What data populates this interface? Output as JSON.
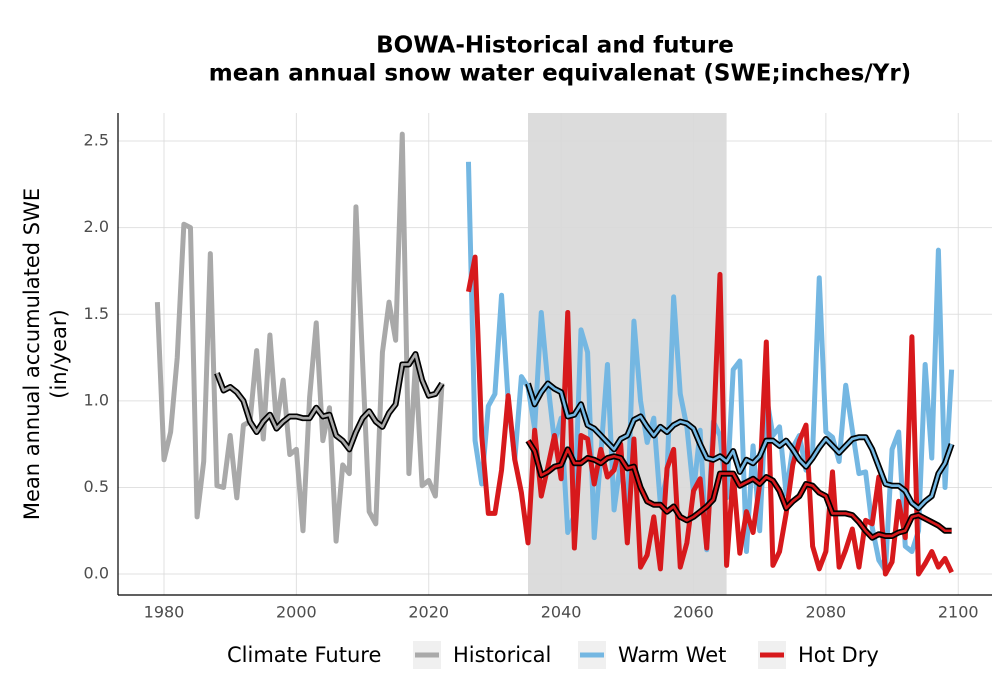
{
  "chart_data": {
    "type": "line",
    "title": [
      "BOWA-Historical and future",
      "mean annual snow water equivalenat (SWE;inches/Yr)"
    ],
    "y_label": [
      "Mean annual accumulated SWE",
      "(in/year)"
    ],
    "legend_title": "Climate Future",
    "shade": [
      2035,
      2065
    ],
    "xlim": [
      1973.05,
      2105.1
    ],
    "xticks": [
      1980,
      2000,
      2020,
      2040,
      2060,
      2080,
      2100
    ],
    "ylim": [
      -0.121,
      2.662
    ],
    "yticks": [
      {
        "value": 0,
        "label": "0.0"
      },
      0.5,
      {
        "value": 1,
        "label": "1.0"
      },
      1.5,
      {
        "value": 2,
        "label": "2.0"
      },
      2.5
    ],
    "grid": true,
    "series": [
      {
        "name": "Historical",
        "color": "#a9a9a9",
        "x": [
          1979,
          1980,
          1981,
          1982,
          1983,
          1984,
          1985,
          1986,
          1987,
          1988,
          1989,
          1990,
          1991,
          1992,
          1993,
          1994,
          1995,
          1996,
          1997,
          1998,
          1999,
          2000,
          2001,
          2002,
          2003,
          2004,
          2005,
          2006,
          2007,
          2008,
          2009,
          2010,
          2011,
          2012,
          2013,
          2014,
          2015,
          2016,
          2017,
          2018,
          2019,
          2020,
          2021,
          2022
        ],
        "values": [
          1.57,
          0.66,
          0.82,
          1.25,
          2.02,
          2.0,
          0.33,
          0.65,
          1.85,
          0.51,
          0.5,
          0.8,
          0.44,
          0.86,
          0.88,
          1.29,
          0.78,
          1.38,
          0.86,
          1.12,
          0.69,
          0.72,
          0.25,
          1.02,
          1.45,
          0.77,
          0.96,
          0.19,
          0.63,
          0.58,
          2.12,
          1.23,
          0.36,
          0.29,
          1.28,
          1.57,
          1.35,
          2.54,
          0.58,
          1.22,
          0.51,
          0.54,
          0.45,
          1.1
        ],
        "smooth_x": [
          1988,
          1989,
          1990,
          1991,
          1992,
          1993,
          1994,
          1995,
          1996,
          1997,
          1998,
          1999,
          2000,
          2001,
          2002,
          2003,
          2004,
          2005,
          2006,
          2007,
          2008,
          2009,
          2010,
          2011,
          2012,
          2013,
          2014,
          2015,
          2016,
          2017,
          2018,
          2019,
          2020,
          2021,
          2022
        ],
        "smooth": [
          1.16,
          1.06,
          1.08,
          1.05,
          1.0,
          0.88,
          0.82,
          0.88,
          0.92,
          0.84,
          0.88,
          0.91,
          0.91,
          0.9,
          0.9,
          0.96,
          0.91,
          0.92,
          0.8,
          0.77,
          0.72,
          0.82,
          0.9,
          0.94,
          0.88,
          0.85,
          0.93,
          0.98,
          1.21,
          1.21,
          1.27,
          1.12,
          1.03,
          1.04,
          1.1
        ]
      },
      {
        "name": "Warm Wet",
        "color": "#74b7e2",
        "x": [
          2026,
          2027,
          2028,
          2029,
          2030,
          2031,
          2032,
          2033,
          2034,
          2035,
          2036,
          2037,
          2038,
          2039,
          2040,
          2041,
          2042,
          2043,
          2044,
          2045,
          2046,
          2047,
          2048,
          2049,
          2050,
          2051,
          2052,
          2053,
          2054,
          2055,
          2056,
          2057,
          2058,
          2059,
          2060,
          2061,
          2062,
          2063,
          2064,
          2065,
          2066,
          2067,
          2068,
          2069,
          2070,
          2071,
          2072,
          2073,
          2074,
          2075,
          2076,
          2077,
          2078,
          2079,
          2080,
          2081,
          2082,
          2083,
          2084,
          2085,
          2086,
          2087,
          2088,
          2089,
          2090,
          2091,
          2092,
          2093,
          2094,
          2095,
          2096,
          2097,
          2098,
          2099
        ],
        "values": [
          2.38,
          0.77,
          0.52,
          0.97,
          1.04,
          1.61,
          1.0,
          0.66,
          1.14,
          1.08,
          0.84,
          1.51,
          1.1,
          0.76,
          0.9,
          0.24,
          0.34,
          1.41,
          1.28,
          0.21,
          0.69,
          1.21,
          0.37,
          0.65,
          0.33,
          1.46,
          1.0,
          0.76,
          0.9,
          0.4,
          0.57,
          1.6,
          1.04,
          0.85,
          0.47,
          0.83,
          0.14,
          0.88,
          0.8,
          0.44,
          1.18,
          1.23,
          0.13,
          0.74,
          0.25,
          1.03,
          0.8,
          0.85,
          0.46,
          0.73,
          0.8,
          0.6,
          0.71,
          1.71,
          0.82,
          0.79,
          0.65,
          1.09,
          0.83,
          0.58,
          0.59,
          0.27,
          0.08,
          0.02,
          0.72,
          0.82,
          0.16,
          0.13,
          0.25,
          1.21,
          0.67,
          1.87,
          0.5,
          1.18
        ],
        "smooth_x": [
          2035,
          2036,
          2037,
          2038,
          2039,
          2040,
          2041,
          2042,
          2043,
          2044,
          2045,
          2046,
          2047,
          2048,
          2049,
          2050,
          2051,
          2052,
          2053,
          2054,
          2055,
          2056,
          2057,
          2058,
          2059,
          2060,
          2061,
          2062,
          2063,
          2064,
          2065,
          2066,
          2067,
          2068,
          2069,
          2070,
          2071,
          2072,
          2073,
          2074,
          2075,
          2076,
          2077,
          2078,
          2079,
          2080,
          2081,
          2082,
          2083,
          2084,
          2085,
          2086,
          2087,
          2088,
          2089,
          2090,
          2091,
          2092,
          2093,
          2094,
          2095,
          2096,
          2097,
          2098,
          2099
        ],
        "smooth": [
          1.1,
          0.98,
          1.05,
          1.1,
          1.07,
          1.05,
          0.91,
          0.92,
          0.98,
          0.86,
          0.84,
          0.8,
          0.76,
          0.72,
          0.78,
          0.8,
          0.89,
          0.91,
          0.85,
          0.8,
          0.85,
          0.82,
          0.86,
          0.88,
          0.87,
          0.84,
          0.75,
          0.67,
          0.66,
          0.68,
          0.65,
          0.71,
          0.59,
          0.66,
          0.64,
          0.68,
          0.77,
          0.77,
          0.74,
          0.77,
          0.72,
          0.66,
          0.62,
          0.67,
          0.73,
          0.78,
          0.74,
          0.7,
          0.74,
          0.78,
          0.79,
          0.79,
          0.72,
          0.62,
          0.52,
          0.51,
          0.51,
          0.48,
          0.41,
          0.38,
          0.42,
          0.45,
          0.58,
          0.64,
          0.75
        ]
      },
      {
        "name": "Hot Dry",
        "color": "#d7191c",
        "x": [
          2026,
          2027,
          2028,
          2029,
          2030,
          2031,
          2032,
          2033,
          2034,
          2035,
          2036,
          2037,
          2038,
          2039,
          2040,
          2041,
          2042,
          2043,
          2044,
          2045,
          2046,
          2047,
          2048,
          2049,
          2050,
          2051,
          2052,
          2053,
          2054,
          2055,
          2056,
          2057,
          2058,
          2059,
          2060,
          2061,
          2062,
          2063,
          2064,
          2065,
          2066,
          2067,
          2068,
          2069,
          2070,
          2071,
          2072,
          2073,
          2074,
          2075,
          2076,
          2077,
          2078,
          2079,
          2080,
          2081,
          2082,
          2083,
          2084,
          2085,
          2086,
          2087,
          2088,
          2089,
          2090,
          2091,
          2092,
          2093,
          2094,
          2095,
          2096,
          2097,
          2098,
          2099
        ],
        "values": [
          1.63,
          1.83,
          0.8,
          0.35,
          0.35,
          0.6,
          1.03,
          0.66,
          0.47,
          0.18,
          0.83,
          0.45,
          0.62,
          0.8,
          0.55,
          1.51,
          0.15,
          0.8,
          0.78,
          0.52,
          0.72,
          0.56,
          0.6,
          0.75,
          0.18,
          0.78,
          0.04,
          0.11,
          0.33,
          0.03,
          0.61,
          0.72,
          0.04,
          0.18,
          0.48,
          0.55,
          0.15,
          0.8,
          1.73,
          0.05,
          0.58,
          0.12,
          0.36,
          0.24,
          0.52,
          1.34,
          0.05,
          0.13,
          0.35,
          0.63,
          0.77,
          0.86,
          0.16,
          0.03,
          0.13,
          0.59,
          0.04,
          0.14,
          0.26,
          0.04,
          0.31,
          0.29,
          0.56,
          0.0,
          0.07,
          0.42,
          0.21,
          1.37,
          0.0,
          0.06,
          0.13,
          0.04,
          0.09,
          0.01
        ],
        "smooth_x": [
          2035,
          2036,
          2037,
          2038,
          2039,
          2040,
          2041,
          2042,
          2043,
          2044,
          2045,
          2046,
          2047,
          2048,
          2049,
          2050,
          2051,
          2052,
          2053,
          2054,
          2055,
          2056,
          2057,
          2058,
          2059,
          2060,
          2061,
          2062,
          2063,
          2064,
          2065,
          2066,
          2067,
          2068,
          2069,
          2070,
          2071,
          2072,
          2073,
          2074,
          2075,
          2076,
          2077,
          2078,
          2079,
          2080,
          2081,
          2082,
          2083,
          2084,
          2085,
          2086,
          2087,
          2088,
          2089,
          2090,
          2091,
          2092,
          2093,
          2094,
          2095,
          2096,
          2097,
          2098,
          2099
        ],
        "smooth": [
          0.77,
          0.71,
          0.57,
          0.59,
          0.62,
          0.63,
          0.72,
          0.64,
          0.64,
          0.67,
          0.66,
          0.64,
          0.67,
          0.68,
          0.67,
          0.61,
          0.62,
          0.5,
          0.42,
          0.4,
          0.4,
          0.36,
          0.39,
          0.33,
          0.31,
          0.33,
          0.36,
          0.39,
          0.43,
          0.58,
          0.58,
          0.58,
          0.51,
          0.53,
          0.55,
          0.52,
          0.56,
          0.54,
          0.48,
          0.38,
          0.42,
          0.45,
          0.52,
          0.51,
          0.47,
          0.45,
          0.35,
          0.35,
          0.35,
          0.34,
          0.3,
          0.25,
          0.21,
          0.23,
          0.22,
          0.22,
          0.24,
          0.25,
          0.33,
          0.34,
          0.32,
          0.3,
          0.28,
          0.25,
          0.25
        ]
      }
    ]
  }
}
